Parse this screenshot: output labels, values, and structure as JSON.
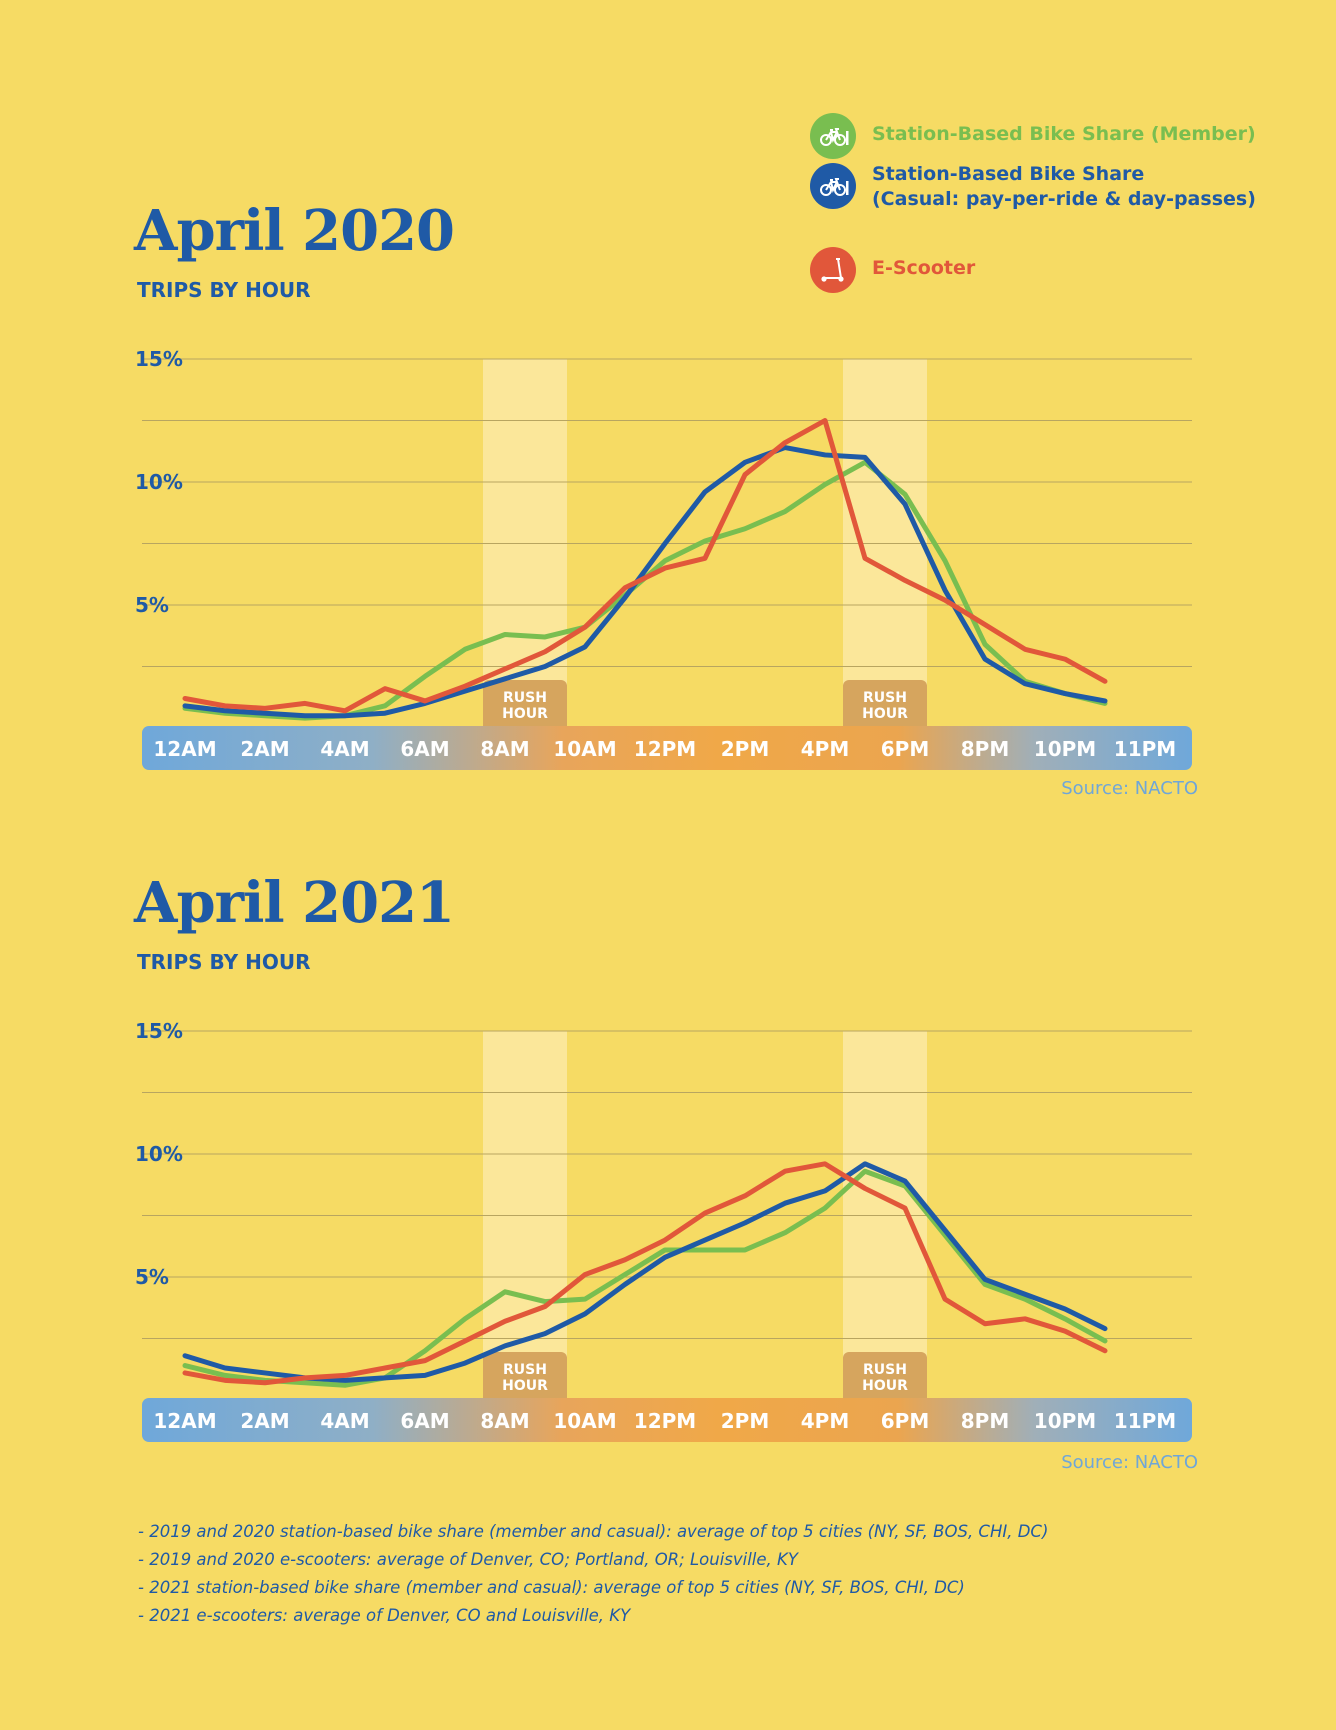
{
  "legend": [
    {
      "label_lines": [
        "Station-Based Bike Share (Member)"
      ],
      "color": "#79BE50",
      "icon": "bicycle-icon"
    },
    {
      "label_lines": [
        "Station-Based Bike Share",
        "(Casual: pay-per-ride & day-passes)"
      ],
      "color": "#1F5AA6",
      "icon": "bicycle-icon"
    },
    {
      "label_lines": [
        "E-Scooter"
      ],
      "color": "#E1573A",
      "icon": "scooter-icon"
    }
  ],
  "rush_hour_label": [
    "RUSH",
    "HOUR"
  ],
  "source": "Source: NACTO",
  "notes": [
    "- 2019 and 2020 station-based bike share (member and casual): average of top 5 cities (NY, SF, BOS, CHI, DC)",
    "- 2019 and 2020 e-scooters: average of Denver, CO; Portland, OR; Louisville, KY",
    "- 2021 station-based bike share (member and casual): average of top 5 cities (NY, SF, BOS, CHI, DC)",
    "- 2021 e-scooters: average of Denver, CO and Louisville, KY"
  ],
  "chart_data": [
    {
      "type": "line",
      "title": "April 2020",
      "subtitle": "TRIPS BY HOUR",
      "ylim": [
        0,
        15
      ],
      "yticks": [
        5,
        10,
        15
      ],
      "ytick_labels": [
        "5%",
        "10%",
        "15%"
      ],
      "x": [
        0,
        1,
        2,
        3,
        4,
        5,
        6,
        7,
        8,
        9,
        10,
        11,
        12,
        13,
        14,
        15,
        16,
        17,
        18,
        19,
        20,
        21,
        22,
        23
      ],
      "xtick_labels": [
        "12AM",
        "2AM",
        "4AM",
        "6AM",
        "8AM",
        "10AM",
        "12PM",
        "2PM",
        "4PM",
        "6PM",
        "8PM",
        "10PM",
        "11PM"
      ],
      "rush_hours": [
        [
          8,
          9
        ],
        [
          17,
          18
        ]
      ],
      "series": [
        {
          "name": "Station-Based Bike Share (Member)",
          "color": "#79BE50",
          "values": [
            0.8,
            0.6,
            0.5,
            0.4,
            0.5,
            0.9,
            2.1,
            3.2,
            3.8,
            3.7,
            4.1,
            5.4,
            6.8,
            7.6,
            8.1,
            8.8,
            9.9,
            10.8,
            9.5,
            6.8,
            3.4,
            1.9,
            1.4,
            1.0
          ]
        },
        {
          "name": "Station-Based Bike Share (Casual: pay-per-ride & day-passes)",
          "color": "#1F5AA6",
          "values": [
            0.9,
            0.7,
            0.6,
            0.5,
            0.5,
            0.6,
            1.0,
            1.5,
            2.0,
            2.5,
            3.3,
            5.3,
            7.5,
            9.6,
            10.8,
            11.4,
            11.1,
            11.0,
            9.1,
            5.6,
            2.8,
            1.8,
            1.4,
            1.1
          ]
        },
        {
          "name": "E-Scooter",
          "color": "#E1573A",
          "values": [
            1.2,
            0.9,
            0.8,
            1.0,
            0.7,
            1.6,
            1.1,
            1.7,
            2.4,
            3.1,
            4.1,
            5.7,
            6.5,
            6.9,
            10.3,
            11.6,
            12.5,
            6.9,
            6.0,
            5.2,
            4.2,
            3.2,
            2.8,
            1.9
          ]
        }
      ]
    },
    {
      "type": "line",
      "title": "April 2021",
      "subtitle": "TRIPS BY HOUR",
      "ylim": [
        0,
        15
      ],
      "yticks": [
        5,
        10,
        15
      ],
      "ytick_labels": [
        "5%",
        "10%",
        "15%"
      ],
      "x": [
        0,
        1,
        2,
        3,
        4,
        5,
        6,
        7,
        8,
        9,
        10,
        11,
        12,
        13,
        14,
        15,
        16,
        17,
        18,
        19,
        20,
        21,
        22,
        23
      ],
      "xtick_labels": [
        "12AM",
        "2AM",
        "4AM",
        "6AM",
        "8AM",
        "10AM",
        "12PM",
        "2PM",
        "4PM",
        "6PM",
        "8PM",
        "10PM",
        "11PM"
      ],
      "rush_hours": [
        [
          8,
          9
        ],
        [
          17,
          18
        ]
      ],
      "series": [
        {
          "name": "Station-Based Bike Share (Member)",
          "color": "#79BE50",
          "values": [
            1.4,
            1.0,
            0.8,
            0.7,
            0.6,
            0.9,
            2.0,
            3.3,
            4.4,
            4.0,
            4.1,
            5.1,
            6.1,
            6.1,
            6.1,
            6.8,
            7.8,
            9.3,
            8.7,
            6.7,
            4.7,
            4.1,
            3.3,
            2.4
          ]
        },
        {
          "name": "Station-Based Bike Share (Casual: pay-per-ride & day-passes)",
          "color": "#1F5AA6",
          "values": [
            1.8,
            1.3,
            1.1,
            0.9,
            0.8,
            0.9,
            1.0,
            1.5,
            2.2,
            2.7,
            3.5,
            4.7,
            5.8,
            6.5,
            7.2,
            8.0,
            8.5,
            9.6,
            8.9,
            6.9,
            4.9,
            4.3,
            3.7,
            2.9
          ]
        },
        {
          "name": "E-Scooter",
          "color": "#E1573A",
          "values": [
            1.1,
            0.8,
            0.7,
            0.9,
            1.0,
            1.3,
            1.6,
            2.4,
            3.2,
            3.8,
            5.1,
            5.7,
            6.5,
            7.6,
            8.3,
            9.3,
            9.6,
            8.6,
            7.8,
            4.1,
            3.1,
            3.3,
            2.8,
            2.0
          ]
        }
      ]
    }
  ]
}
